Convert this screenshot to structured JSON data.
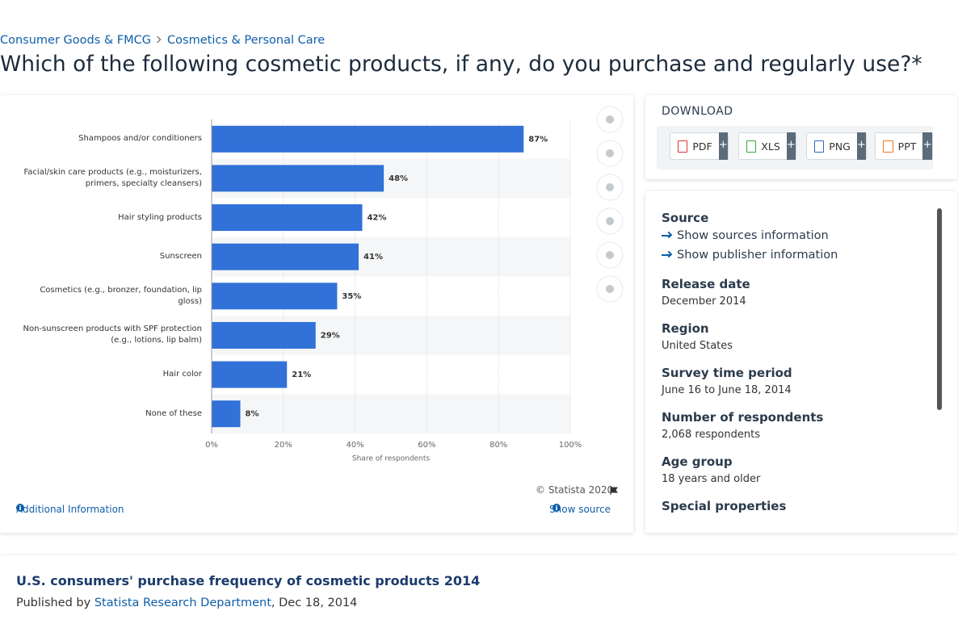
{
  "breadcrumb": [
    "Consumer Goods & FMCG",
    "Cosmetics & Personal Care"
  ],
  "title": "Which of the following cosmetic products, if any, do you purchase and regularly use?*",
  "chart_data": {
    "type": "bar",
    "orientation": "horizontal",
    "categories": [
      "Shampoos and/or conditioners",
      "Facial/skin care products (e.g., moisturizers, primers, specialty cleansers)",
      "Hair styling products",
      "Sunscreen",
      "Cosmetics (e.g., bronzer, foundation, lip gloss)",
      "Non-sunscreen products with SPF protection (e.g., lotions, lip balm)",
      "Hair color",
      "None of these"
    ],
    "values": [
      87,
      48,
      42,
      41,
      35,
      29,
      21,
      8
    ],
    "value_labels": [
      "87%",
      "48%",
      "42%",
      "41%",
      "35%",
      "29%",
      "21%",
      "8%"
    ],
    "color": "#3171d8",
    "xlim": [
      0,
      100
    ],
    "xticks": [
      {
        "value": 0,
        "label": "0%"
      },
      {
        "value": 20,
        "label": "20%"
      },
      {
        "value": 40,
        "label": "40%"
      },
      {
        "value": 60,
        "label": "60%"
      },
      {
        "value": 80,
        "label": "80%"
      },
      {
        "value": 100,
        "label": "100%"
      }
    ],
    "xlabel": "Share of respondents",
    "grid": true
  },
  "chart_footer": {
    "copyright": "© Statista 2020",
    "additional": "Additional Information",
    "show_source": "Show source"
  },
  "download": {
    "heading": "DOWNLOAD",
    "buttons": [
      {
        "label": "PDF",
        "plus": "+"
      },
      {
        "label": "XLS",
        "plus": "+"
      },
      {
        "label": "PNG",
        "plus": "+"
      },
      {
        "label": "PPT",
        "plus": "+"
      }
    ]
  },
  "details": {
    "source_heading": "Source",
    "source_links": [
      "Show sources information",
      "Show publisher information"
    ],
    "items": [
      {
        "label": "Release date",
        "value": "December 2014"
      },
      {
        "label": "Region",
        "value": "United States"
      },
      {
        "label": "Survey time period",
        "value": "June 16 to June 18, 2014"
      },
      {
        "label": "Number of respondents",
        "value": "2,068 respondents"
      },
      {
        "label": "Age group",
        "value": "18 years and older"
      },
      {
        "label": "Special properties",
        "value": ""
      }
    ]
  },
  "bottom": {
    "heading": "U.S. consumers' purchase frequency of cosmetic products 2014",
    "published_by": "Published by",
    "publisher": "Statista Research Department",
    "date": ", Dec 18, 2014"
  }
}
